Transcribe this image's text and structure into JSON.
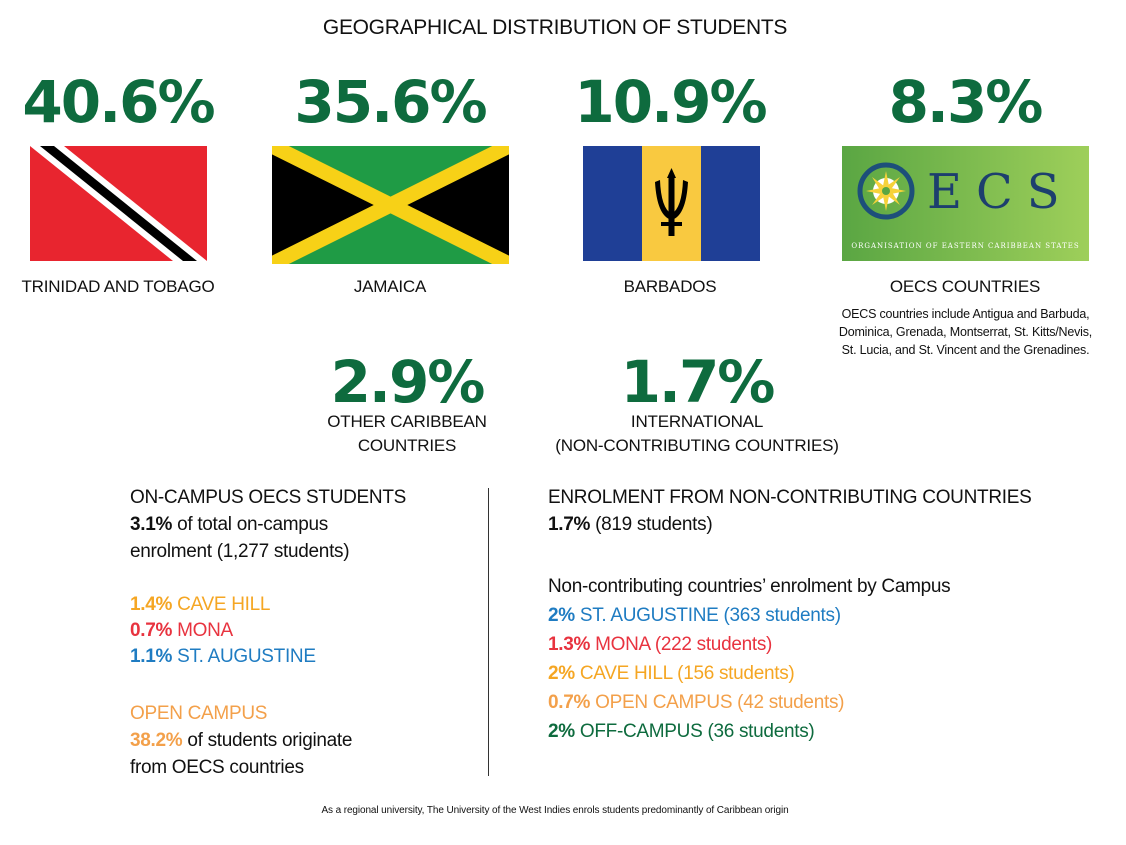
{
  "title": "GEOGRAPHICAL DISTRIBUTION OF STUDENTS",
  "colors": {
    "green": "#0e6b3e",
    "orange": "#f5a623",
    "red": "#e8333f",
    "blue": "#1f7cc2",
    "open_campus": "#f3a04a"
  },
  "regions": [
    {
      "pct": "40.6%",
      "label": "TRINIDAD AND TOBAGO",
      "flag": "trinidad-flag"
    },
    {
      "pct": "35.6%",
      "label": "JAMAICA",
      "flag": "jamaica-flag"
    },
    {
      "pct": "10.9%",
      "label": "BARBADOS",
      "flag": "barbados-flag"
    },
    {
      "pct": "8.3%",
      "label": "OECS COUNTRIES",
      "flag": "oecs-logo",
      "logo_text": "ECS",
      "logo_subtext": "Organisation of Eastern Caribbean States",
      "note_lines": [
        "OECS countries include Antigua and Barbuda,",
        "Dominica, Grenada, Montserrat, St. Kitts/Nevis,",
        "St. Lucia, and St. Vincent and the Grenadines."
      ]
    }
  ],
  "other": [
    {
      "pct": "2.9%",
      "label_lines": [
        "OTHER CARIBBEAN",
        "COUNTRIES"
      ]
    },
    {
      "pct": "1.7%",
      "label_lines": [
        "INTERNATIONAL",
        "(NON-CONTRIBUTING COUNTRIES)"
      ]
    }
  ],
  "left_col": {
    "heading": "ON-CAMPUS OECS STUDENTS",
    "stat_value": "3.1%",
    "stat_text_1": " of total on-campus",
    "stat_text_2": "enrolment (1,277 students)",
    "campuses": [
      {
        "value": "1.4%",
        "name": " CAVE HILL",
        "color": "#f5a623"
      },
      {
        "value": "0.7%",
        "name": " MONA",
        "color": "#e8333f"
      },
      {
        "value": "1.1%",
        "name": " ST. AUGUSTINE",
        "color": "#1f7cc2"
      }
    ],
    "open_heading": "OPEN CAMPUS",
    "open_value": "38.2%",
    "open_text_1": " of students originate",
    "open_text_2": "from OECS countries"
  },
  "right_col": {
    "heading": "ENROLMENT FROM NON-CONTRIBUTING COUNTRIES",
    "stat_value": "1.7%",
    "stat_text": " (819 students)",
    "sub_heading": "Non-contributing countries’ enrolment by Campus",
    "campuses": [
      {
        "value": "2%",
        "name": " ST. AUGUSTINE (363 students)",
        "color": "#1f7cc2"
      },
      {
        "value": "1.3%",
        "name": " MONA (222 students)",
        "color": "#e8333f"
      },
      {
        "value": "2%",
        "name": " CAVE HILL (156 students)",
        "color": "#f5a623"
      },
      {
        "value": "0.7%",
        "name": " OPEN CAMPUS (42 students)",
        "color": "#f3a04a"
      },
      {
        "value": "2%",
        "name": " OFF-CAMPUS (36 students)",
        "color": "#0e6b3e"
      }
    ]
  },
  "footer": "As a regional university, The University of the West Indies enrols students predominantly of Caribbean origin"
}
